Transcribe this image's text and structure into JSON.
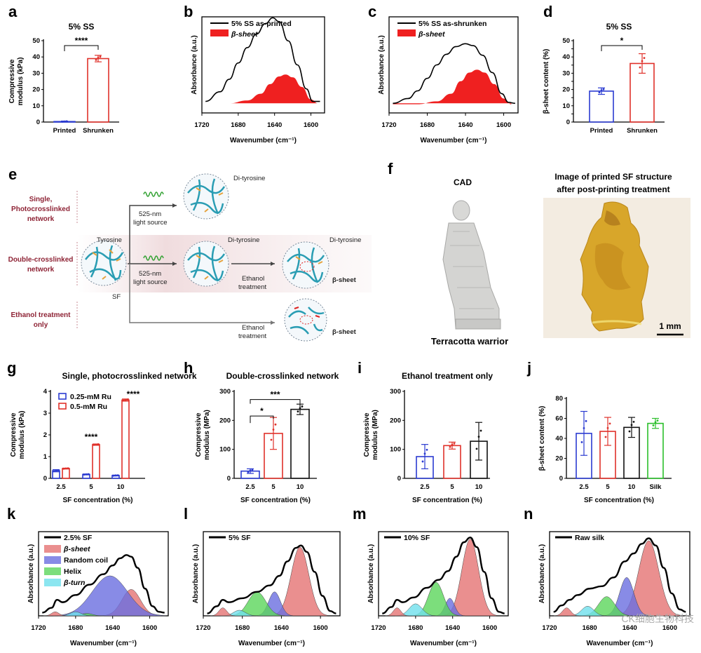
{
  "panel_labels": [
    "a",
    "b",
    "c",
    "d",
    "e",
    "f",
    "g",
    "h",
    "i",
    "j",
    "k",
    "l",
    "m",
    "n"
  ],
  "colors": {
    "blue": "#2b3bd1",
    "red": "#e0312a",
    "black": "#111111",
    "green": "#2bbf2b",
    "fill_red": "#ef2020",
    "peak_red": "#e57373",
    "peak_blue": "#6a6ee0",
    "peak_green": "#5bd65b",
    "peak_cyan": "#6fe0ec",
    "net_text": "#8e2335",
    "teal": "#2a9db3",
    "orange": "#e6a23c"
  },
  "chart_data": [
    {
      "id": "a",
      "type": "bar",
      "title": "5% SS",
      "ylabel": "Compressive modulus (kPa)",
      "categories": [
        "Printed",
        "Shrunken"
      ],
      "values": [
        0.3,
        39
      ],
      "errors": [
        0.3,
        2
      ],
      "ylim": [
        0,
        50
      ],
      "yticks": [
        0,
        10,
        20,
        30,
        40,
        50
      ],
      "significance": [
        "****"
      ],
      "colors": [
        "blue",
        "red"
      ]
    },
    {
      "id": "b",
      "type": "area",
      "xlabel": "Wavenumber (cm⁻¹)",
      "ylabel": "Absorbance (a.u.)",
      "xlim": [
        1720,
        1585
      ],
      "xticks": [
        1720,
        1680,
        1640,
        1600
      ],
      "series": [
        {
          "name": "5% SS as-printed",
          "x": [
            1716,
            1700,
            1690,
            1680,
            1670,
            1660,
            1650,
            1642,
            1635,
            1625,
            1615,
            1605,
            1598,
            1590
          ],
          "y": [
            0.12,
            0.22,
            0.35,
            0.52,
            0.68,
            0.82,
            0.93,
            0.99,
            0.95,
            0.75,
            0.5,
            0.25,
            0.12,
            0.12
          ]
        },
        {
          "name": "β-sheet",
          "x": [
            1716,
            1690,
            1670,
            1655,
            1645,
            1635,
            1628,
            1620,
            1610,
            1600,
            1592
          ],
          "y": [
            0.1,
            0.1,
            0.13,
            0.2,
            0.3,
            0.38,
            0.4,
            0.37,
            0.27,
            0.14,
            0.1
          ]
        }
      ]
    },
    {
      "id": "c",
      "type": "area",
      "xlabel": "Wavenumber (cm⁻¹)",
      "ylabel": "Absorbance (a.u.)",
      "xlim": [
        1720,
        1585
      ],
      "xticks": [
        1720,
        1680,
        1640,
        1600
      ],
      "series": [
        {
          "name": "5% SS as-shrunken",
          "x": [
            1716,
            1700,
            1690,
            1680,
            1670,
            1660,
            1650,
            1640,
            1632,
            1622,
            1612,
            1602,
            1595,
            1588
          ],
          "y": [
            0.1,
            0.15,
            0.23,
            0.36,
            0.5,
            0.61,
            0.69,
            0.72,
            0.7,
            0.6,
            0.42,
            0.2,
            0.11,
            0.1
          ]
        },
        {
          "name": "β-sheet",
          "x": [
            1716,
            1690,
            1670,
            1655,
            1645,
            1636,
            1628,
            1620,
            1610,
            1600,
            1592
          ],
          "y": [
            0.09,
            0.09,
            0.12,
            0.2,
            0.33,
            0.42,
            0.45,
            0.42,
            0.3,
            0.15,
            0.09
          ]
        }
      ]
    },
    {
      "id": "d",
      "type": "bar",
      "title": "5% SS",
      "ylabel": "β-sheet content (%)",
      "categories": [
        "Printed",
        "Shrunken"
      ],
      "values": [
        19,
        36
      ],
      "errors": [
        2,
        6
      ],
      "ylim": [
        0,
        50
      ],
      "yticks": [
        0,
        5,
        10,
        15,
        20,
        25,
        30,
        35,
        40,
        45,
        50
      ],
      "significance": [
        "*"
      ],
      "colors": [
        "blue",
        "red"
      ]
    },
    {
      "id": "g",
      "type": "bar",
      "title": "Single, photocrosslinked network",
      "xlabel": "SF concentration (%)",
      "ylabel": "Compressive modulus (kPa)",
      "categories": [
        "2.5",
        "5",
        "10"
      ],
      "series": [
        {
          "name": "0.25-mM Ru",
          "values": [
            0.35,
            0.18,
            0.13
          ],
          "errors": [
            0.05,
            0.02,
            0.02
          ]
        },
        {
          "name": "0.5-mM Ru",
          "values": [
            0.45,
            1.55,
            3.6
          ],
          "errors": [
            0.02,
            0.03,
            0.05
          ]
        }
      ],
      "ylim": [
        0,
        4
      ],
      "yticks": [
        0,
        1,
        2,
        3,
        4
      ],
      "significance": [
        "****",
        "****"
      ]
    },
    {
      "id": "h",
      "type": "bar",
      "title": "Double-crosslinked network",
      "xlabel": "SF concentration (%)",
      "ylabel": "Compressive modulus (MPa)",
      "categories": [
        "2.5",
        "5",
        "10"
      ],
      "values": [
        25,
        155,
        238
      ],
      "errors": [
        8,
        55,
        18
      ],
      "ylim": [
        0,
        300
      ],
      "yticks": [
        0,
        100,
        200,
        300
      ],
      "significance": [
        "*",
        "***"
      ],
      "colors": [
        "blue",
        "red",
        "black"
      ]
    },
    {
      "id": "i",
      "type": "bar",
      "title": "Ethanol treatment only",
      "xlabel": "SF concentration (%)",
      "ylabel": "Compressive modulus (MPa)",
      "categories": [
        "2.5",
        "5",
        "10"
      ],
      "values": [
        75,
        113,
        128
      ],
      "errors": [
        42,
        12,
        65
      ],
      "ylim": [
        0,
        300
      ],
      "yticks": [
        0,
        100,
        200,
        300
      ],
      "colors": [
        "blue",
        "red",
        "black"
      ]
    },
    {
      "id": "j",
      "type": "bar",
      "xlabel": "SF concentration (%)",
      "ylabel": "β-sheet content (%)",
      "categories": [
        "2.5",
        "5",
        "10",
        "Silk"
      ],
      "values": [
        45,
        47,
        51,
        55
      ],
      "errors": [
        22,
        14,
        10,
        5
      ],
      "ylim": [
        0,
        80
      ],
      "yticks": [
        0,
        20,
        40,
        60,
        80
      ],
      "colors": [
        "blue",
        "red",
        "black",
        "green"
      ]
    },
    {
      "id": "k",
      "type": "area",
      "xlabel": "Wavenumber (cm⁻¹)",
      "ylabel": "Absorbance (a.u.)",
      "xlim": [
        1720,
        1580
      ],
      "xticks": [
        1720,
        1680,
        1640,
        1600
      ],
      "legend": [
        "2.5% SF",
        "β-sheet",
        "Random coil",
        "Helix",
        "β-turn"
      ],
      "total": {
        "x": [
          1716,
          1706,
          1700,
          1694,
          1680,
          1665,
          1650,
          1640,
          1632,
          1625,
          1620,
          1613,
          1605,
          1597,
          1590,
          1584
        ],
        "y": [
          0.04,
          0.1,
          0.2,
          0.17,
          0.26,
          0.39,
          0.52,
          0.63,
          0.72,
          0.76,
          0.74,
          0.6,
          0.34,
          0.12,
          0.05,
          0.04
        ]
      },
      "peaks": [
        {
          "name": "β-sheet",
          "c": 1620,
          "w": 10,
          "h": 0.33
        },
        {
          "name": "Random coil",
          "c": 1643,
          "w": 19,
          "h": 0.5
        },
        {
          "name": "Helix",
          "c": 1668,
          "w": 6,
          "h": 0.03
        },
        {
          "name": "β-turn",
          "c": 1680,
          "w": 6,
          "h": 0.05
        },
        {
          "name": "side",
          "c": 1702,
          "w": 4,
          "h": 0.05
        }
      ]
    },
    {
      "id": "l",
      "type": "area",
      "xlabel": "Wavenumber (cm⁻¹)",
      "ylabel": "Absorbance (a.u.)",
      "xlim": [
        1720,
        1580
      ],
      "xticks": [
        1720,
        1680,
        1640,
        1600
      ],
      "legend": [
        "5% SF"
      ],
      "total": {
        "x": [
          1716,
          1706,
          1700,
          1694,
          1680,
          1665,
          1652,
          1642,
          1634,
          1625,
          1620,
          1614,
          1606,
          1598,
          1590,
          1584
        ],
        "y": [
          0.03,
          0.12,
          0.2,
          0.17,
          0.22,
          0.3,
          0.38,
          0.5,
          0.68,
          0.85,
          0.88,
          0.8,
          0.55,
          0.25,
          0.06,
          0.03
        ]
      },
      "peaks": [
        {
          "name": "β-sheet",
          "c": 1621,
          "w": 9,
          "h": 0.86
        },
        {
          "name": "Random coil",
          "c": 1647,
          "w": 6,
          "h": 0.3
        },
        {
          "name": "Helix",
          "c": 1665,
          "w": 9,
          "h": 0.3
        },
        {
          "name": "β-turn",
          "c": 1683,
          "w": 6,
          "h": 0.07
        },
        {
          "name": "side",
          "c": 1700,
          "w": 4,
          "h": 0.1
        }
      ]
    },
    {
      "id": "m",
      "type": "area",
      "xlabel": "Wavenumber (cm⁻¹)",
      "ylabel": "Absorbance (a.u.)",
      "xlim": [
        1720,
        1580
      ],
      "xticks": [
        1720,
        1680,
        1640,
        1600
      ],
      "legend": [
        "10% SF"
      ],
      "total": {
        "x": [
          1716,
          1706,
          1700,
          1694,
          1682,
          1668,
          1655,
          1645,
          1636,
          1628,
          1621,
          1614,
          1606,
          1598,
          1590,
          1584
        ],
        "y": [
          0.03,
          0.11,
          0.2,
          0.17,
          0.23,
          0.35,
          0.45,
          0.56,
          0.74,
          0.92,
          0.98,
          0.86,
          0.55,
          0.22,
          0.05,
          0.03
        ]
      },
      "peaks": [
        {
          "name": "β-sheet",
          "c": 1621,
          "w": 9,
          "h": 0.96
        },
        {
          "name": "Random coil",
          "c": 1643,
          "w": 5,
          "h": 0.22
        },
        {
          "name": "Helix",
          "c": 1658,
          "w": 8,
          "h": 0.42
        },
        {
          "name": "β-turn",
          "c": 1680,
          "w": 7,
          "h": 0.15
        },
        {
          "name": "side",
          "c": 1700,
          "w": 4,
          "h": 0.1
        }
      ]
    },
    {
      "id": "n",
      "type": "area",
      "xlabel": "Wavenumber (cm⁻¹)",
      "ylabel": "Absorbance (a.u.)",
      "xlim": [
        1720,
        1580
      ],
      "xticks": [
        1720,
        1680,
        1640,
        1600
      ],
      "legend": [
        "Raw silk"
      ],
      "total": {
        "x": [
          1716,
          1708,
          1700,
          1692,
          1680,
          1668,
          1656,
          1645,
          1636,
          1628,
          1621,
          1614,
          1606,
          1598,
          1590,
          1584
        ],
        "y": [
          0.05,
          0.13,
          0.2,
          0.26,
          0.34,
          0.37,
          0.48,
          0.68,
          0.78,
          0.9,
          0.97,
          0.88,
          0.6,
          0.28,
          0.08,
          0.05
        ]
      },
      "peaks": [
        {
          "name": "β-sheet",
          "c": 1621,
          "w": 10,
          "h": 0.94
        },
        {
          "name": "Random coil",
          "c": 1643,
          "w": 7,
          "h": 0.48
        },
        {
          "name": "Helix",
          "c": 1663,
          "w": 8,
          "h": 0.24
        },
        {
          "name": "β-turn",
          "c": 1682,
          "w": 6,
          "h": 0.12
        },
        {
          "name": "side",
          "c": 1703,
          "w": 4,
          "h": 0.1
        }
      ]
    }
  ],
  "schematic_e": {
    "row_labels": [
      "Single,",
      "Photocrosslinked",
      "network",
      "Double-crosslinked",
      "network",
      "Ethanol treatment",
      "only"
    ],
    "light_source": [
      "525-nm",
      "light source"
    ],
    "ethanol": [
      "Ethanol",
      "treatment"
    ],
    "labels": {
      "di_tyrosine": "Di-tyrosine",
      "tyrosine": "Tyrosine",
      "sf": "SF",
      "beta_sheet": "β-sheet"
    }
  },
  "panel_f": {
    "cad_title": "CAD",
    "right_title_1": "Image of printed SF structure",
    "right_title_2": "after post-printing treatment",
    "caption": "Terracotta warrior",
    "scale_bar": "1 mm"
  },
  "watermark": "CK细胞生物科技"
}
